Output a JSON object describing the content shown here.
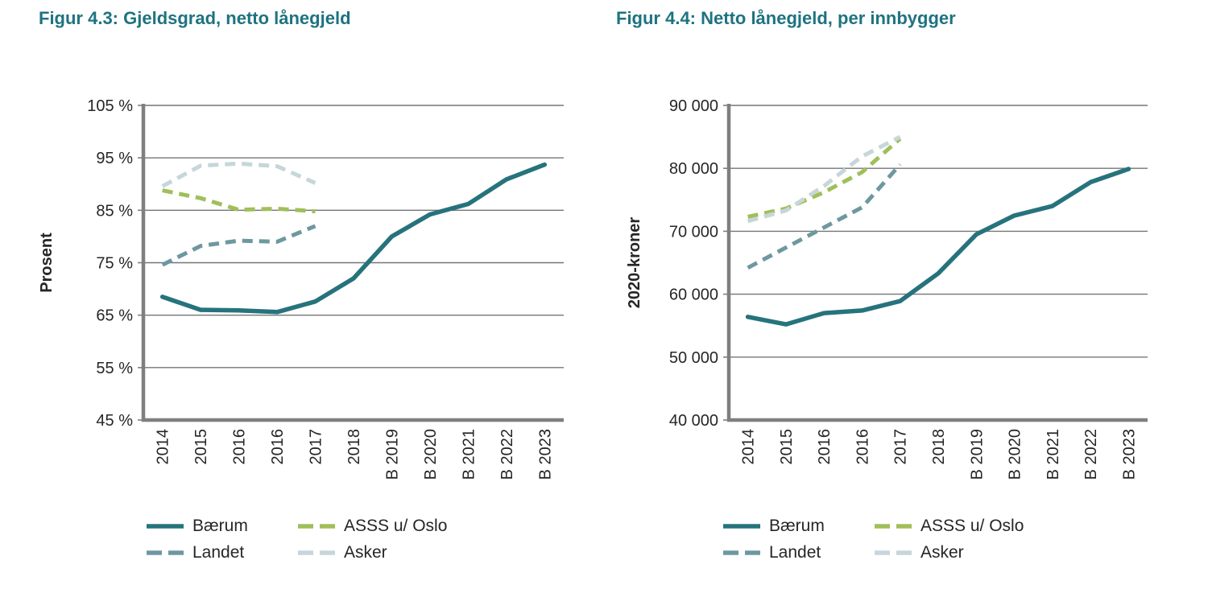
{
  "page": {
    "background": "#ffffff",
    "text_color": "#262626",
    "title_color": "#1e7380",
    "axis_color": "#7f7f7f",
    "gridline_color": "#757575"
  },
  "chart_data": [
    {
      "type": "line",
      "title": "Figur 4.3: Gjeldsgrad, netto lånegjeld",
      "xlabel": "",
      "ylabel": "Prosent",
      "ylim": [
        45,
        105
      ],
      "ytick_labels": [
        "45 %",
        "55 %",
        "65 %",
        "75 %",
        "85 %",
        "95 %",
        "105 %"
      ],
      "categories": [
        "2014",
        "2015",
        "2016",
        "2016",
        "2017",
        "2018",
        "B 2019",
        "B 2020",
        "B 2021",
        "B 2022",
        "B 2023"
      ],
      "grid": true,
      "legend_position": "bottom",
      "series": [
        {
          "name": "Bærum",
          "color": "#26737c",
          "style": "solid",
          "values": [
            68.5,
            66,
            65.9,
            65.6,
            67.6,
            72,
            80,
            84.2,
            86.2,
            90.9,
            93.7
          ]
        },
        {
          "name": "Landet",
          "color": "#6e98a0",
          "style": "dashed",
          "values": [
            74.6,
            78.2,
            79.2,
            79,
            82
          ]
        },
        {
          "name": "ASSS u/ Oslo",
          "color": "#a0bf5a",
          "style": "dashed",
          "values": [
            88.8,
            87.3,
            85.1,
            85.3,
            84.8
          ]
        },
        {
          "name": "Asker",
          "color": "#c6d6da",
          "style": "dashed",
          "values": [
            89.6,
            93.5,
            93.9,
            93.4,
            90.2
          ]
        }
      ]
    },
    {
      "type": "line",
      "title": "Figur 4.4: Netto lånegjeld, per innbygger",
      "xlabel": "",
      "ylabel": "2020-kroner",
      "ylim": [
        40000,
        90000
      ],
      "ytick_labels": [
        "40 000",
        "50 000",
        "60 000",
        "70 000",
        "80 000",
        "90 000"
      ],
      "categories": [
        "2014",
        "2015",
        "2016",
        "2016",
        "2017",
        "2018",
        "B 2019",
        "B 2020",
        "B 2021",
        "B 2022",
        "B 2023"
      ],
      "grid": true,
      "legend_position": "bottom",
      "series": [
        {
          "name": "Bærum",
          "color": "#26737c",
          "style": "solid",
          "values": [
            56400,
            55200,
            57000,
            57400,
            58900,
            63300,
            69500,
            72500,
            74000,
            77800,
            79900
          ]
        },
        {
          "name": "Landet",
          "color": "#6e98a0",
          "style": "dashed",
          "values": [
            64200,
            67400,
            70600,
            73800,
            80600
          ]
        },
        {
          "name": "ASSS u/ Oslo",
          "color": "#a0bf5a",
          "style": "dashed",
          "values": [
            72300,
            73600,
            76200,
            79400,
            84700
          ]
        },
        {
          "name": "Asker",
          "color": "#c6d6da",
          "style": "dashed",
          "values": [
            71600,
            73300,
            77200,
            81900,
            85000
          ]
        }
      ]
    }
  ]
}
